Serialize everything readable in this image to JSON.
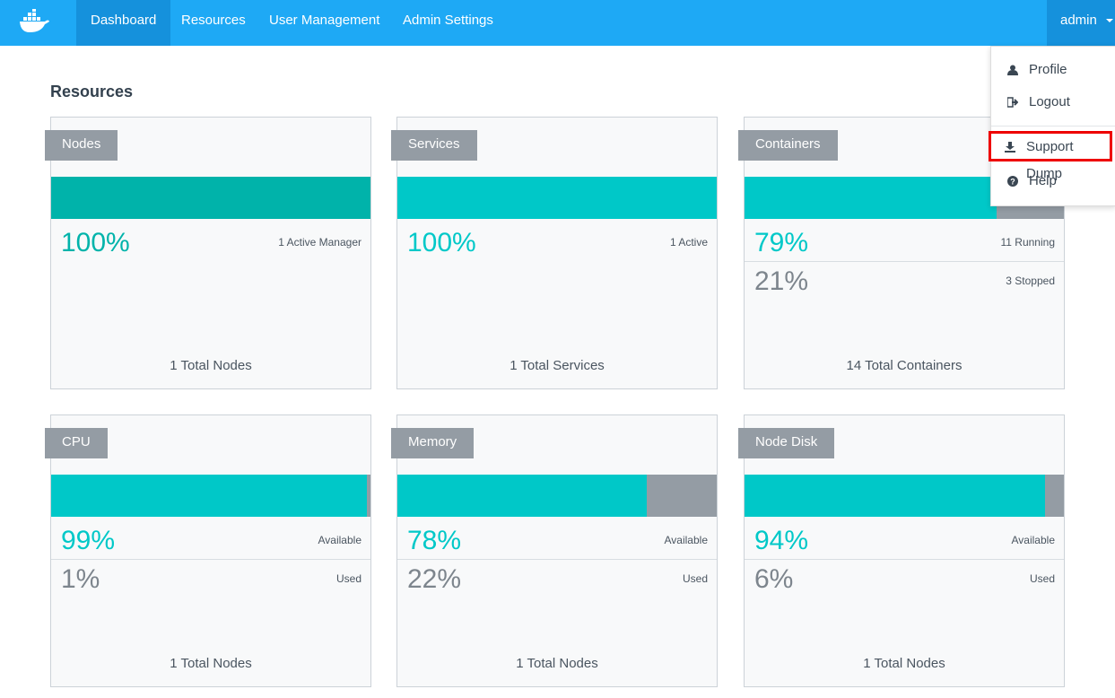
{
  "navbar": {
    "items": [
      "Dashboard",
      "Resources",
      "User Management",
      "Admin Settings"
    ],
    "active": 0,
    "user": "admin"
  },
  "user_menu": {
    "items": [
      "Profile",
      "Logout",
      "Support Dump",
      "Help"
    ],
    "highlighted": 2
  },
  "heading": "Resources",
  "cards": [
    {
      "title": "Nodes",
      "color": "#00b3aa",
      "primary": {
        "value": 100,
        "label": "100%",
        "caption": "1 Active Manager"
      },
      "footer": "1 Total Nodes"
    },
    {
      "title": "Services",
      "color": "#00c8c8",
      "primary": {
        "value": 100,
        "label": "100%",
        "caption": "1 Active"
      },
      "footer": "1 Total Services"
    },
    {
      "title": "Containers",
      "color": "#00c8c8",
      "primary": {
        "value": 79,
        "label": "79%",
        "caption": "11 Running"
      },
      "secondary": {
        "value": 21,
        "label": "21%",
        "caption": "3 Stopped"
      },
      "footer": "14 Total Containers"
    },
    {
      "title": "CPU",
      "color": "#00c8c8",
      "primary": {
        "value": 99,
        "label": "99%",
        "caption": "Available"
      },
      "secondary": {
        "value": 1,
        "label": "1%",
        "caption": "Used"
      },
      "footer": "1 Total Nodes"
    },
    {
      "title": "Memory",
      "color": "#00c8c8",
      "primary": {
        "value": 78,
        "label": "78%",
        "caption": "Available"
      },
      "secondary": {
        "value": 22,
        "label": "22%",
        "caption": "Used"
      },
      "footer": "1 Total Nodes"
    },
    {
      "title": "Node Disk",
      "color": "#00c8c8",
      "primary": {
        "value": 94,
        "label": "94%",
        "caption": "Available"
      },
      "secondary": {
        "value": 6,
        "label": "6%",
        "caption": "Used"
      },
      "footer": "1 Total Nodes"
    }
  ]
}
